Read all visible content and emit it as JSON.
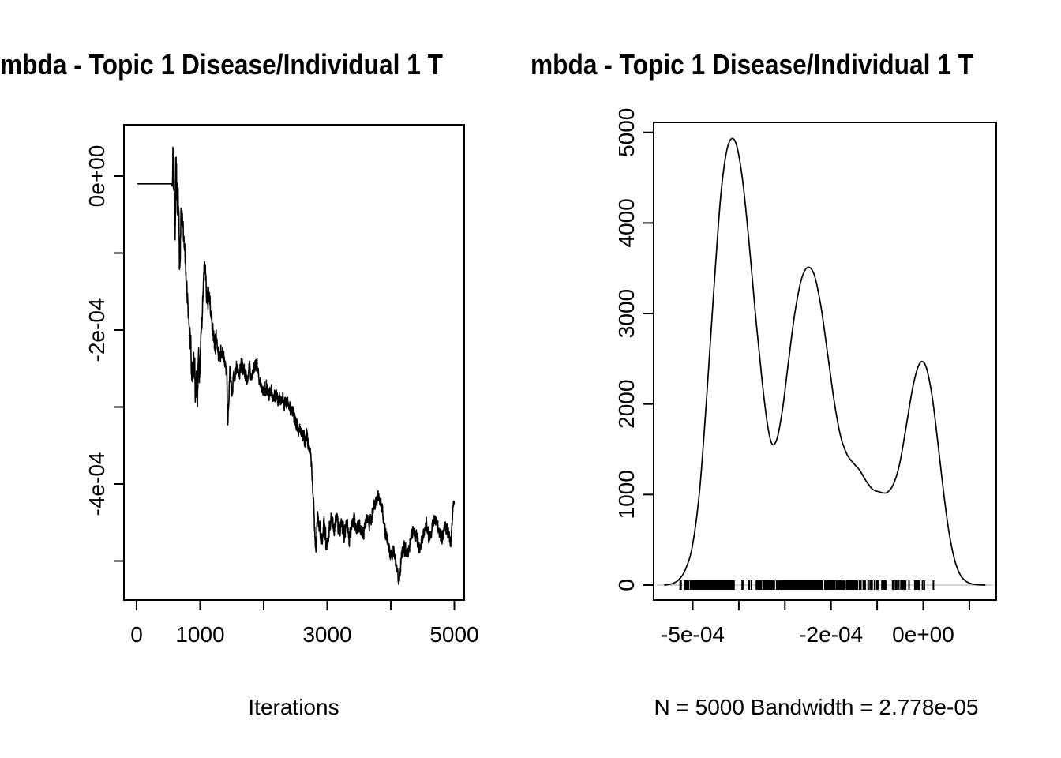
{
  "window": {
    "background": "#ffffff",
    "ink": "#000000",
    "baseline_gray": "#c8c8c8"
  },
  "titles": {
    "left": "mbda - Topic 1 Disease/Individual 1 T",
    "right": "mbda - Topic 1 Disease/Individual 1 T"
  },
  "captions": {
    "left": "Iterations",
    "right": "N = 5000   Bandwidth = 2.778e-05"
  },
  "chart_data": [
    {
      "type": "line",
      "role": "mcmc-trace-plot",
      "title_visible": "mbda - Topic 1 Disease/Individual 1 T",
      "xlabel": "Iterations",
      "ylabel": "",
      "value_units": "1e-04",
      "xlim": [
        0,
        5000
      ],
      "ylim_1e04": [
        -5.5,
        0.65
      ],
      "grid": false,
      "x_ticks": [
        {
          "v": 0,
          "label": "0"
        },
        {
          "v": 1000,
          "label": "1000"
        },
        {
          "v": 2000,
          "label": ""
        },
        {
          "v": 3000,
          "label": "3000"
        },
        {
          "v": 4000,
          "label": ""
        },
        {
          "v": 5000,
          "label": "5000"
        }
      ],
      "y_ticks": [
        {
          "v": 0,
          "label": "0e+00"
        },
        {
          "v": -1,
          "label": ""
        },
        {
          "v": -2,
          "label": "-2e-04"
        },
        {
          "v": -3,
          "label": ""
        },
        {
          "v": -4,
          "label": "-4e-04"
        },
        {
          "v": -5,
          "label": ""
        }
      ],
      "trace_keypoints": [
        [
          0,
          -0.1,
          0
        ],
        [
          555,
          -0.1,
          0
        ],
        [
          565,
          -0.1,
          0.06
        ],
        [
          572,
          0.42,
          0.12
        ],
        [
          580,
          -0.3,
          0.28
        ],
        [
          590,
          0.25,
          0.3
        ],
        [
          600,
          -0.55,
          0.3
        ],
        [
          612,
          -0.7,
          0.26
        ],
        [
          622,
          0.02,
          0.24
        ],
        [
          632,
          -0.18,
          0.22
        ],
        [
          645,
          -0.52,
          0.22
        ],
        [
          660,
          -0.28,
          0.2
        ],
        [
          672,
          -1.05,
          0.22
        ],
        [
          685,
          -1.1,
          0.18
        ],
        [
          700,
          -0.52,
          0.14
        ],
        [
          718,
          -0.48,
          0.1
        ],
        [
          740,
          -0.78,
          0.1
        ],
        [
          775,
          -1.22,
          0.12
        ],
        [
          810,
          -1.72,
          0.12
        ],
        [
          845,
          -2.15,
          0.16
        ],
        [
          875,
          -2.55,
          0.22
        ],
        [
          900,
          -2.42,
          0.26
        ],
        [
          920,
          -2.68,
          0.28
        ],
        [
          940,
          -2.58,
          0.3
        ],
        [
          958,
          -2.88,
          0.26
        ],
        [
          975,
          -2.45,
          0.2
        ],
        [
          995,
          -2.55,
          0.16
        ],
        [
          1015,
          -2.12,
          0.12
        ],
        [
          1040,
          -1.6,
          0.1
        ],
        [
          1068,
          -1.1,
          0.1
        ],
        [
          1092,
          -1.38,
          0.12
        ],
        [
          1118,
          -1.68,
          0.15
        ],
        [
          1142,
          -1.52,
          0.12
        ],
        [
          1168,
          -1.78,
          0.1
        ],
        [
          1200,
          -2.02,
          0.1
        ],
        [
          1232,
          -2.18,
          0.12
        ],
        [
          1262,
          -2.12,
          0.1
        ],
        [
          1300,
          -2.38,
          0.1
        ],
        [
          1340,
          -2.22,
          0.1
        ],
        [
          1382,
          -2.42,
          0.09
        ],
        [
          1420,
          -2.55,
          0.08
        ],
        [
          1432,
          -3.22,
          0.05
        ],
        [
          1450,
          -2.95,
          0.08
        ],
        [
          1468,
          -2.58,
          0.1
        ],
        [
          1500,
          -2.8,
          0.1
        ],
        [
          1540,
          -2.62,
          0.1
        ],
        [
          1575,
          -2.45,
          0.09
        ],
        [
          1615,
          -2.58,
          0.09
        ],
        [
          1655,
          -2.42,
          0.09
        ],
        [
          1695,
          -2.52,
          0.09
        ],
        [
          1735,
          -2.62,
          0.08
        ],
        [
          1775,
          -2.48,
          0.08
        ],
        [
          1815,
          -2.58,
          0.08
        ],
        [
          1855,
          -2.5,
          0.08
        ],
        [
          1890,
          -2.42,
          0.08
        ],
        [
          1925,
          -2.62,
          0.08
        ],
        [
          1960,
          -2.72,
          0.08
        ],
        [
          2000,
          -2.8,
          0.08
        ],
        [
          2040,
          -2.72,
          0.08
        ],
        [
          2080,
          -2.85,
          0.08
        ],
        [
          2120,
          -2.78,
          0.08
        ],
        [
          2160,
          -2.88,
          0.08
        ],
        [
          2200,
          -2.82,
          0.08
        ],
        [
          2240,
          -2.92,
          0.08
        ],
        [
          2280,
          -2.86,
          0.08
        ],
        [
          2320,
          -2.95,
          0.08
        ],
        [
          2360,
          -2.9,
          0.08
        ],
        [
          2400,
          -3.0,
          0.08
        ],
        [
          2440,
          -3.06,
          0.08
        ],
        [
          2480,
          -3.12,
          0.08
        ],
        [
          2520,
          -3.22,
          0.08
        ],
        [
          2560,
          -3.28,
          0.08
        ],
        [
          2600,
          -3.35,
          0.08
        ],
        [
          2640,
          -3.42,
          0.08
        ],
        [
          2680,
          -3.35,
          0.08
        ],
        [
          2710,
          -3.5,
          0.07
        ],
        [
          2740,
          -3.58,
          0.06
        ],
        [
          2765,
          -3.95,
          0.06
        ],
        [
          2790,
          -4.35,
          0.07
        ],
        [
          2810,
          -4.72,
          0.08
        ],
        [
          2825,
          -4.85,
          0.08
        ],
        [
          2845,
          -4.42,
          0.1
        ],
        [
          2880,
          -4.58,
          0.1
        ],
        [
          2915,
          -4.72,
          0.1
        ],
        [
          2950,
          -4.48,
          0.1
        ],
        [
          2990,
          -4.82,
          0.1
        ],
        [
          3030,
          -4.62,
          0.1
        ],
        [
          3070,
          -4.42,
          0.1
        ],
        [
          3110,
          -4.6,
          0.1
        ],
        [
          3150,
          -4.46,
          0.1
        ],
        [
          3190,
          -4.62,
          0.1
        ],
        [
          3230,
          -4.5,
          0.1
        ],
        [
          3270,
          -4.66,
          0.1
        ],
        [
          3310,
          -4.52,
          0.1
        ],
        [
          3350,
          -4.7,
          0.1
        ],
        [
          3390,
          -4.56,
          0.1
        ],
        [
          3430,
          -4.46,
          0.09
        ],
        [
          3470,
          -4.6,
          0.09
        ],
        [
          3510,
          -4.52,
          0.09
        ],
        [
          3550,
          -4.66,
          0.08
        ],
        [
          3590,
          -4.56,
          0.08
        ],
        [
          3630,
          -4.46,
          0.08
        ],
        [
          3672,
          -4.52,
          0.08
        ],
        [
          3714,
          -4.38,
          0.08
        ],
        [
          3756,
          -4.26,
          0.08
        ],
        [
          3800,
          -4.16,
          0.06
        ],
        [
          3856,
          -4.26,
          0.08
        ],
        [
          3900,
          -4.56,
          0.08
        ],
        [
          3950,
          -4.76,
          0.08
        ],
        [
          4000,
          -4.96,
          0.08
        ],
        [
          4040,
          -4.82,
          0.08
        ],
        [
          4082,
          -5.06,
          0.06
        ],
        [
          4128,
          -5.28,
          0.05
        ],
        [
          4168,
          -4.96,
          0.08
        ],
        [
          4210,
          -4.82,
          0.08
        ],
        [
          4258,
          -4.96,
          0.08
        ],
        [
          4308,
          -4.72,
          0.08
        ],
        [
          4356,
          -4.56,
          0.08
        ],
        [
          4408,
          -4.7,
          0.08
        ],
        [
          4458,
          -4.86,
          0.08
        ],
        [
          4508,
          -4.66,
          0.08
        ],
        [
          4556,
          -4.52,
          0.08
        ],
        [
          4606,
          -4.7,
          0.08
        ],
        [
          4656,
          -4.56,
          0.08
        ],
        [
          4706,
          -4.46,
          0.08
        ],
        [
          4756,
          -4.6,
          0.08
        ],
        [
          4806,
          -4.7,
          0.08
        ],
        [
          4856,
          -4.52,
          0.08
        ],
        [
          4906,
          -4.62,
          0.07
        ],
        [
          4946,
          -4.76,
          0.06
        ],
        [
          4978,
          -4.32,
          0.05
        ],
        [
          5000,
          -4.22,
          0.04
        ]
      ]
    },
    {
      "type": "line",
      "role": "kernel-density-plot",
      "title_visible": "mbda - Topic 1 Disease/Individual 1 T",
      "xlabel": "N = 5000   Bandwidth = 2.778e-05",
      "n": 5000,
      "bandwidth": 2.778e-05,
      "x_units": "1e-04",
      "xlim_1e04": [
        -5.9,
        1.6
      ],
      "ylim": [
        0,
        5200
      ],
      "has_rug": true,
      "grid": false,
      "x_ticks": [
        {
          "v": -5,
          "label": "-5e-04"
        },
        {
          "v": -4,
          "label": ""
        },
        {
          "v": -3,
          "label": ""
        },
        {
          "v": -2,
          "label": "-2e-04"
        },
        {
          "v": -1,
          "label": ""
        },
        {
          "v": 0,
          "label": "0e+00"
        },
        {
          "v": 1,
          "label": ""
        }
      ],
      "y_ticks": [
        {
          "v": 0,
          "label": "0"
        },
        {
          "v": 1000,
          "label": "1000"
        },
        {
          "v": 2000,
          "label": "2000"
        },
        {
          "v": 3000,
          "label": "3000"
        },
        {
          "v": 4000,
          "label": "4000"
        },
        {
          "v": 5000,
          "label": "5000"
        }
      ],
      "curve": [
        [
          -5.62,
          0
        ],
        [
          -5.45,
          15
        ],
        [
          -5.3,
          60
        ],
        [
          -5.15,
          180
        ],
        [
          -5.0,
          450
        ],
        [
          -4.85,
          1050
        ],
        [
          -4.7,
          2050
        ],
        [
          -4.55,
          3200
        ],
        [
          -4.4,
          4250
        ],
        [
          -4.28,
          4750
        ],
        [
          -4.17,
          4925
        ],
        [
          -4.05,
          4860
        ],
        [
          -3.92,
          4480
        ],
        [
          -3.78,
          3800
        ],
        [
          -3.64,
          3000
        ],
        [
          -3.5,
          2280
        ],
        [
          -3.38,
          1780
        ],
        [
          -3.28,
          1560
        ],
        [
          -3.17,
          1620
        ],
        [
          -3.05,
          1950
        ],
        [
          -2.92,
          2480
        ],
        [
          -2.78,
          3020
        ],
        [
          -2.64,
          3380
        ],
        [
          -2.5,
          3510
        ],
        [
          -2.36,
          3420
        ],
        [
          -2.22,
          3080
        ],
        [
          -2.08,
          2580
        ],
        [
          -1.94,
          2060
        ],
        [
          -1.8,
          1660
        ],
        [
          -1.66,
          1450
        ],
        [
          -1.52,
          1350
        ],
        [
          -1.38,
          1270
        ],
        [
          -1.24,
          1150
        ],
        [
          -1.1,
          1060
        ],
        [
          -0.95,
          1030
        ],
        [
          -0.8,
          1020
        ],
        [
          -0.66,
          1100
        ],
        [
          -0.52,
          1320
        ],
        [
          -0.38,
          1720
        ],
        [
          -0.24,
          2150
        ],
        [
          -0.12,
          2400
        ],
        [
          -0.02,
          2470
        ],
        [
          0.08,
          2380
        ],
        [
          0.2,
          2060
        ],
        [
          0.32,
          1560
        ],
        [
          0.44,
          1030
        ],
        [
          0.56,
          580
        ],
        [
          0.68,
          280
        ],
        [
          0.8,
          115
        ],
        [
          0.92,
          45
        ],
        [
          1.05,
          14
        ],
        [
          1.2,
          3
        ],
        [
          1.35,
          0
        ]
      ]
    }
  ]
}
